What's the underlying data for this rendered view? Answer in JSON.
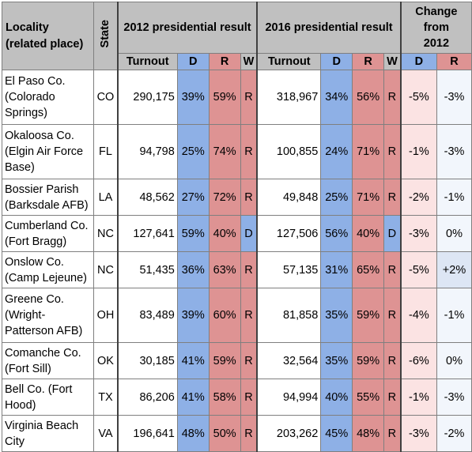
{
  "headers": {
    "locality": "Locality (related place)",
    "state": "State",
    "result2012": "2012 presidential result",
    "result2016": "2016 presidential result",
    "change": "Change from 2012",
    "turnout": "Turnout",
    "d": "D",
    "r": "R",
    "w": "W"
  },
  "colors": {
    "header_gray": "#c0c0c0",
    "democrat_blue": "#8eb0e6",
    "republican_red": "#de9393"
  },
  "rows": [
    {
      "locality": "El Paso Co. (Colorado Springs)",
      "state": "CO",
      "t12": "290,175",
      "d12": "39%",
      "r12": "59%",
      "w12": "R",
      "t16": "318,967",
      "d16": "34%",
      "r16": "56%",
      "w16": "R",
      "cd": "-5%",
      "cr": "-3%"
    },
    {
      "locality": "Okaloosa Co. (Elgin Air Force Base)",
      "state": "FL",
      "t12": "94,798",
      "d12": "25%",
      "r12": "74%",
      "w12": "R",
      "t16": "100,855",
      "d16": "24%",
      "r16": "71%",
      "w16": "R",
      "cd": "-1%",
      "cr": "-3%"
    },
    {
      "locality": "Bossier Parish (Barksdale AFB)",
      "state": "LA",
      "t12": "48,562",
      "d12": "27%",
      "r12": "72%",
      "w12": "R",
      "t16": "49,848",
      "d16": "25%",
      "r16": "71%",
      "w16": "R",
      "cd": "-2%",
      "cr": "-1%"
    },
    {
      "locality": "Cumberland Co. (Fort Bragg)",
      "state": "NC",
      "t12": "127,641",
      "d12": "59%",
      "r12": "40%",
      "w12": "D",
      "t16": "127,506",
      "d16": "56%",
      "r16": "40%",
      "w16": "D",
      "cd": "-3%",
      "cr": "0%"
    },
    {
      "locality": "Onslow Co. (Camp Lejeune)",
      "state": "NC",
      "t12": "51,435",
      "d12": "36%",
      "r12": "63%",
      "w12": "R",
      "t16": "57,135",
      "d16": "31%",
      "r16": "65%",
      "w16": "R",
      "cd": "-5%",
      "cr": "+2%"
    },
    {
      "locality": "Greene Co. (Wright-Patterson AFB)",
      "state": "OH",
      "t12": "83,489",
      "d12": "39%",
      "r12": "60%",
      "w12": "R",
      "t16": "81,858",
      "d16": "35%",
      "r16": "59%",
      "w16": "R",
      "cd": "-4%",
      "cr": "-1%"
    },
    {
      "locality": "Comanche Co. (Fort Sill)",
      "state": "OK",
      "t12": "30,185",
      "d12": "41%",
      "r12": "59%",
      "w12": "R",
      "t16": "32,564",
      "d16": "35%",
      "r16": "59%",
      "w16": "R",
      "cd": "-6%",
      "cr": "0%"
    },
    {
      "locality": "Bell Co. (Fort Hood)",
      "state": "TX",
      "t12": "86,206",
      "d12": "41%",
      "r12": "58%",
      "w12": "R",
      "t16": "94,994",
      "d16": "40%",
      "r16": "55%",
      "w16": "R",
      "cd": "-1%",
      "cr": "-3%"
    },
    {
      "locality": "Virginia Beach City",
      "state": "VA",
      "t12": "196,641",
      "d12": "48%",
      "r12": "50%",
      "w12": "R",
      "t16": "203,262",
      "d16": "45%",
      "r16": "48%",
      "w16": "R",
      "cd": "-3%",
      "cr": "-2%"
    }
  ]
}
